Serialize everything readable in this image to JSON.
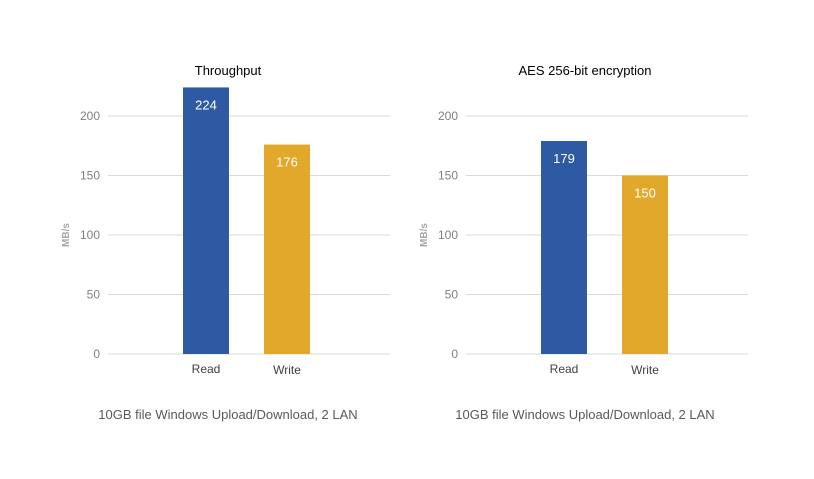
{
  "colors": {
    "read": "#2e5aa3",
    "write": "#e2a82b"
  },
  "chart_data": [
    {
      "type": "bar",
      "title": "Throughput",
      "ylabel": "MB/s",
      "xlabel": "",
      "ylim": [
        0,
        200
      ],
      "yticks": [
        "0",
        "50",
        "100",
        "150",
        "200"
      ],
      "categories": [
        "Read",
        "Write"
      ],
      "values": [
        224,
        176
      ],
      "data_labels": [
        "224",
        "176"
      ],
      "footer": "10GB file Windows Upload/Download, 2 LAN",
      "grid": true
    },
    {
      "type": "bar",
      "title": "AES 256-bit encryption",
      "ylabel": "MB/s",
      "xlabel": "",
      "ylim": [
        0,
        200
      ],
      "yticks": [
        "0",
        "50",
        "100",
        "150",
        "200"
      ],
      "categories": [
        "Read",
        "Write"
      ],
      "values": [
        179,
        150
      ],
      "data_labels": [
        "179",
        "150"
      ],
      "footer": "10GB file Windows Upload/Download, 2 LAN",
      "grid": true
    }
  ]
}
